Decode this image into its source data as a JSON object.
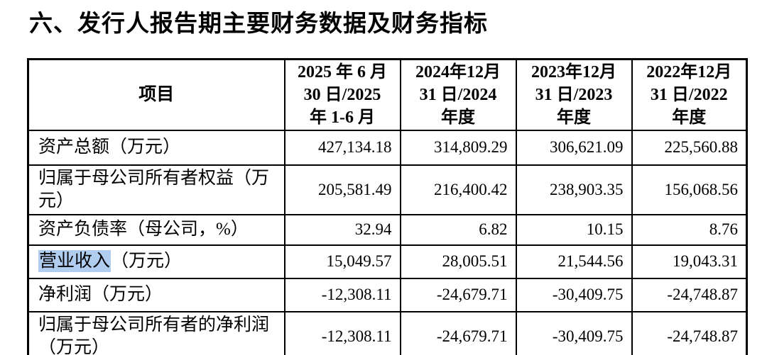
{
  "document": {
    "title": "六、发行人报告期主要财务数据及财务指标"
  },
  "colors": {
    "text": "#000000",
    "table_border": "#000000",
    "selection_highlight": "#b0cdf0",
    "background": "#ffffff"
  },
  "table": {
    "header": {
      "item": "项目",
      "periods": [
        {
          "lines": [
            "2025 年 6 月",
            "30 日/2025",
            "年 1-6 月"
          ]
        },
        {
          "lines": [
            "2024年12月",
            "31 日/2024",
            "年度"
          ]
        },
        {
          "lines": [
            "2023年12月",
            "31 日/2023",
            "年度"
          ]
        },
        {
          "lines": [
            "2022年12月",
            "31 日/2022",
            "年度"
          ]
        }
      ]
    },
    "rows": [
      {
        "label": "资产总额（万元）",
        "values": [
          "427,134.18",
          "314,809.29",
          "306,621.09",
          "225,560.88"
        ]
      },
      {
        "label": "归属于母公司所有者权益（万元）",
        "values": [
          "205,581.49",
          "216,400.42",
          "238,903.35",
          "156,068.56"
        ]
      },
      {
        "label": "资产负债率（母公司，%）",
        "values": [
          "32.94",
          "6.82",
          "10.15",
          "8.76"
        ]
      },
      {
        "label_highlighted": "营业收入",
        "label_rest": "（万元）",
        "values": [
          "15,049.57",
          "28,005.51",
          "21,544.56",
          "19,043.31"
        ]
      },
      {
        "label": "净利润（万元）",
        "values": [
          "-12,308.11",
          "-24,679.71",
          "-30,409.75",
          "-24,748.87"
        ]
      },
      {
        "label": "归属于母公司所有者的净利润（万元）",
        "values": [
          "-12,308.11",
          "-24,679.71",
          "-30,409.75",
          "-24,748.87"
        ]
      }
    ]
  }
}
